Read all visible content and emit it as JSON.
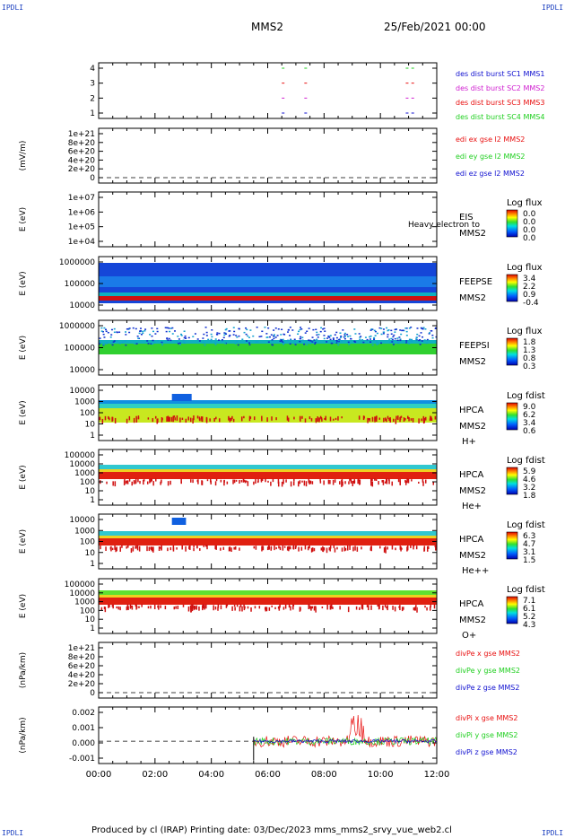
{
  "corners": {
    "tl": "IPDLI",
    "tr": "IPDLI",
    "bl": "IPDLI",
    "br": "IPDLI"
  },
  "header": {
    "mission": "MMS2",
    "datetime": "25/Feb/2021 00:00"
  },
  "footer": {
    "text": "Produced by cl (IRAP)   Printing date: 03/Dec/2023   mms_mms2_srvy_vue_web2.cl"
  },
  "colors": {
    "red": "#e81010",
    "green": "#1fcf1f",
    "blue": "#1010d0",
    "magenta": "#d020d0",
    "darkblue": "#10108f"
  },
  "chart_data": [
    {
      "type": "scatter",
      "ylabel": "",
      "yticks": [
        "4",
        "3",
        "2",
        "1"
      ],
      "legend": [
        {
          "name": "des dist burst SC1 MMS1",
          "color": "#1010d0"
        },
        {
          "name": "des dist burst SC2 MMS2",
          "color": "#d020d0"
        },
        {
          "name": "des dist burst SC3 MMS3",
          "color": "#e81010"
        },
        {
          "name": "des dist burst SC4 MMS4",
          "color": "#1fcf1f"
        }
      ],
      "x_hours": [
        6.5,
        7.3,
        10.9,
        11.1
      ]
    },
    {
      "type": "line",
      "ylabel": "(mV/m)",
      "yticks": [
        "1e+21",
        "8e+20",
        "6e+20",
        "4e+20",
        "2e+20",
        "0"
      ],
      "legend": [
        {
          "name": "edi ex gse l2 MMS2",
          "color": "#e81010"
        },
        {
          "name": "edi ey gse l2 MMS2",
          "color": "#1fcf1f"
        },
        {
          "name": "edi ez gse l2 MMS2",
          "color": "#1010d0"
        }
      ]
    },
    {
      "type": "heatmap",
      "ylabel": "E (eV)",
      "yticks": [
        "1e+07",
        "1e+06",
        "1e+05",
        "1e+04"
      ],
      "instrument": [
        "EIS",
        "MMS2"
      ],
      "overlay": "Heavy electron to",
      "colorbar": {
        "title": "Log flux",
        "ticks": [
          "0.0",
          "0.0",
          "0.0",
          "0.0"
        ]
      }
    },
    {
      "type": "heatmap",
      "ylabel": "E (eV)",
      "yticks": [
        "1000000",
        "100000",
        "10000"
      ],
      "instrument": [
        "FEEPSE",
        "MMS2"
      ],
      "colorbar": {
        "title": "Log flux",
        "ticks": [
          "3.4",
          "2.2",
          "0.9",
          "-0.4"
        ]
      }
    },
    {
      "type": "heatmap",
      "ylabel": "E (eV)",
      "yticks": [
        "1000000",
        "100000",
        "10000"
      ],
      "instrument": [
        "FEEPSI",
        "MMS2"
      ],
      "colorbar": {
        "title": "Log flux",
        "ticks": [
          "1.8",
          "1.3",
          "0.8",
          "0.3"
        ]
      }
    },
    {
      "type": "heatmap",
      "ylabel": "E (eV)",
      "yticks": [
        "10000",
        "1000",
        "100",
        "10",
        "1"
      ],
      "instrument": [
        "HPCA",
        "MMS2",
        "H+"
      ],
      "colorbar": {
        "title": "Log fdist",
        "ticks": [
          "9.0",
          "6.2",
          "3.4",
          "0.6"
        ]
      }
    },
    {
      "type": "heatmap",
      "ylabel": "E (eV)",
      "yticks": [
        "100000",
        "10000",
        "1000",
        "100",
        "10",
        "1"
      ],
      "instrument": [
        "HPCA",
        "MMS2",
        "He+"
      ],
      "colorbar": {
        "title": "Log fdist",
        "ticks": [
          "5.9",
          "4.6",
          "3.2",
          "1.8"
        ]
      }
    },
    {
      "type": "heatmap",
      "ylabel": "E (eV)",
      "yticks": [
        "10000",
        "1000",
        "100",
        "10",
        "1"
      ],
      "instrument": [
        "HPCA",
        "MMS2",
        "He++"
      ],
      "colorbar": {
        "title": "Log fdist",
        "ticks": [
          "6.3",
          "4.7",
          "3.1",
          "1.5"
        ]
      }
    },
    {
      "type": "heatmap",
      "ylabel": "E (eV)",
      "yticks": [
        "100000",
        "10000",
        "1000",
        "100",
        "10",
        "1"
      ],
      "instrument": [
        "HPCA",
        "MMS2",
        "O+"
      ],
      "colorbar": {
        "title": "Log fdist",
        "ticks": [
          "7.1",
          "6.1",
          "5.2",
          "4.3"
        ]
      }
    },
    {
      "type": "line",
      "ylabel": "(nPa/km)",
      "yticks": [
        "1e+21",
        "8e+20",
        "6e+20",
        "4e+20",
        "2e+20",
        "0"
      ],
      "legend": [
        {
          "name": "divPe x gse MMS2",
          "color": "#e81010"
        },
        {
          "name": "divPe y gse MMS2",
          "color": "#1fcf1f"
        },
        {
          "name": "divPe z gse MMS2",
          "color": "#1010d0"
        }
      ]
    },
    {
      "type": "line",
      "ylabel": "(nPa/km)",
      "yticks": [
        "0.002",
        "0.001",
        "0.000",
        "-0.001"
      ],
      "ylim": [
        -0.0015,
        0.0023
      ],
      "legend": [
        {
          "name": "divPi x gse MMS2",
          "color": "#e81010"
        },
        {
          "name": "divPi y gse MMS2",
          "color": "#1fcf1f"
        },
        {
          "name": "divPi z gse MMS2",
          "color": "#1010d0"
        }
      ],
      "x_start_hours": 5.5
    }
  ],
  "x_axis": {
    "ticks": [
      "00:00",
      "02:00",
      "04:00",
      "06:00",
      "08:00",
      "10:00",
      "12:00"
    ],
    "range_hours": [
      0,
      12
    ]
  }
}
